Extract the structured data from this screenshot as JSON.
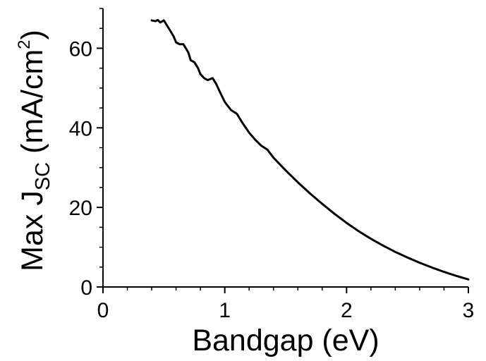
{
  "chart_data": {
    "type": "line",
    "xlabel": "Bandgap (eV)",
    "ylabel": {
      "prefix": "Max J",
      "subscript": "SC",
      "units_prefix": " (mA/cm",
      "superscript": "2",
      "units_suffix": ")"
    },
    "xlim": [
      0,
      3
    ],
    "ylim": [
      0,
      70
    ],
    "x_ticks": [
      0,
      1,
      2,
      3
    ],
    "x_tick_labels": [
      "0",
      "1",
      "2",
      "3"
    ],
    "y_ticks": [
      0,
      20,
      40,
      60
    ],
    "y_tick_labels": [
      "0",
      "20",
      "40",
      "60"
    ],
    "grid": false,
    "series": [
      {
        "color": "#000000",
        "x": [
          0.4,
          0.43,
          0.45,
          0.47,
          0.5,
          0.52,
          0.55,
          0.58,
          0.6,
          0.63,
          0.66,
          0.7,
          0.72,
          0.75,
          0.78,
          0.8,
          0.83,
          0.86,
          0.9,
          0.93,
          0.96,
          1.0,
          1.05,
          1.1,
          1.15,
          1.2,
          1.25,
          1.3,
          1.35,
          1.4,
          1.5,
          1.6,
          1.7,
          1.8,
          1.9,
          2.0,
          2.1,
          2.2,
          2.3,
          2.4,
          2.5,
          2.6,
          2.7,
          2.8,
          2.9,
          3.0
        ],
        "y": [
          67,
          66.8,
          67.1,
          66.5,
          67,
          66,
          64.5,
          63,
          61.5,
          61,
          61,
          59,
          57,
          56.5,
          55,
          53.5,
          52.5,
          52,
          52.5,
          51,
          49,
          46.5,
          44.5,
          43.5,
          41,
          38.8,
          37,
          35.5,
          34.5,
          32.5,
          29.3,
          26.3,
          23.5,
          20.9,
          18.4,
          16.1,
          14,
          12.1,
          10.4,
          8.8,
          7.4,
          6.1,
          4.9,
          3.8,
          2.8,
          1.9
        ]
      }
    ]
  }
}
